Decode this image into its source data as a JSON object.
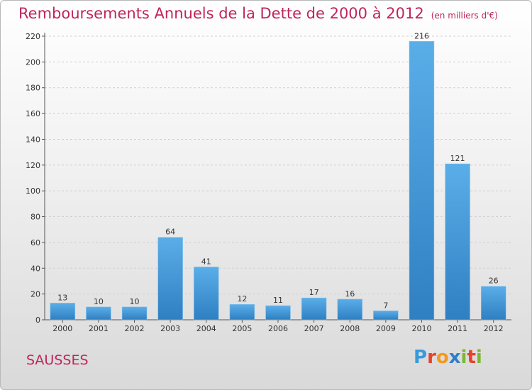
{
  "title": "Remboursements Annuels de la Dette de 2000 à 2012",
  "unit_note": "(en milliers d'€)",
  "commune": "SAUSSES",
  "logo": {
    "text": "Proxiti",
    "letters": [
      {
        "ch": "P",
        "color": "#3a9ad9"
      },
      {
        "ch": "r",
        "color": "#e8402a"
      },
      {
        "ch": "o",
        "color": "#f39a1e"
      },
      {
        "ch": "x",
        "color": "#2e7fc7"
      },
      {
        "ch": "i",
        "color": "#7cb82f"
      },
      {
        "ch": "t",
        "color": "#e8402a"
      },
      {
        "ch": "i",
        "color": "#7cb82f"
      }
    ]
  },
  "colors": {
    "bar_top": "#5aaee8",
    "bar_bottom": "#2f7fc2",
    "title": "#c0245c"
  },
  "chart_data": {
    "type": "bar",
    "categories": [
      "2000",
      "2001",
      "2002",
      "2003",
      "2004",
      "2005",
      "2006",
      "2007",
      "2008",
      "2009",
      "2010",
      "2011",
      "2012"
    ],
    "values": [
      13,
      10,
      10,
      64,
      41,
      12,
      11,
      17,
      16,
      7,
      216,
      121,
      26
    ],
    "ylim": [
      0,
      220
    ],
    "yticks": [
      0,
      20,
      40,
      60,
      80,
      100,
      120,
      140,
      160,
      180,
      200,
      220
    ],
    "grid": true,
    "title": "Remboursements Annuels de la Dette de 2000 à 2012",
    "xlabel": "",
    "ylabel": ""
  }
}
